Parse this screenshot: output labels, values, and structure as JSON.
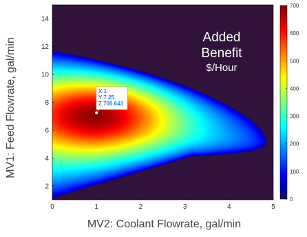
{
  "chart_data": {
    "type": "heatmap",
    "title": "",
    "xlabel": "MV2: Coolant Flowrate, gal/min",
    "ylabel": "MV1: Feed Flowrate,  gal/min",
    "xlim": [
      0,
      5
    ],
    "ylim": [
      1,
      15
    ],
    "x_ticks": [
      "0",
      "1",
      "2",
      "3",
      "4",
      "5"
    ],
    "y_ticks": [
      "2",
      "4",
      "6",
      "8",
      "10",
      "12",
      "14"
    ],
    "colormap": "jet",
    "background_color": "#30123b",
    "colorbar": {
      "min": 0,
      "max": 700,
      "ticks": [
        "0",
        "100",
        "200",
        "300",
        "400",
        "500",
        "600",
        "700"
      ]
    },
    "annotation": {
      "lines": [
        "Added",
        "Benefit",
        "$/Hour"
      ]
    },
    "peak": {
      "x": 1,
      "y": 7.25,
      "z": 700.643
    },
    "datatip": {
      "lines": [
        "X 1",
        "Y 7.25",
        "Z 700.643"
      ],
      "label_color": "#333333",
      "value_color": "#1e88e5"
    },
    "surface": {
      "center_y": 6.3,
      "top_y_at_x0": 11.7,
      "bottom_y_at_x0": 1.1,
      "tip_x": 4.85,
      "tip_y": 5.1,
      "zero_contour_y_lower": 1.3
    }
  }
}
